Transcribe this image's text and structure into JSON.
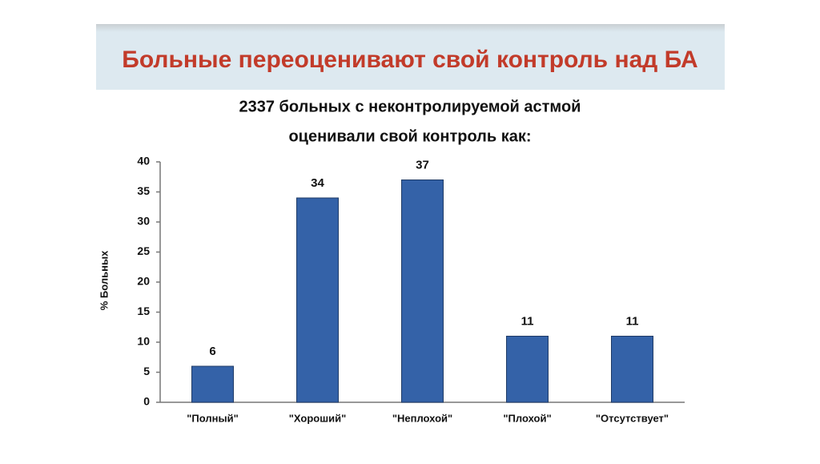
{
  "header": {
    "title": "Больные переоценивают свой контроль над БА"
  },
  "chart_data": {
    "type": "bar",
    "title": [
      "2337 больных с неконтролируемой астмой",
      "оценивали свой контроль как:"
    ],
    "ylabel": "% Больных",
    "categories": [
      "\"Полный\"",
      "\"Хороший\"",
      "\"Неплохой\"",
      "\"Плохой\"",
      "\"Отсутствует\""
    ],
    "values": [
      6,
      34,
      37,
      11,
      11
    ],
    "color": "#3462a8",
    "ylim": [
      0,
      40
    ],
    "yticks": [
      0,
      5,
      10,
      15,
      20,
      25,
      30,
      35,
      40
    ],
    "grid": false
  }
}
